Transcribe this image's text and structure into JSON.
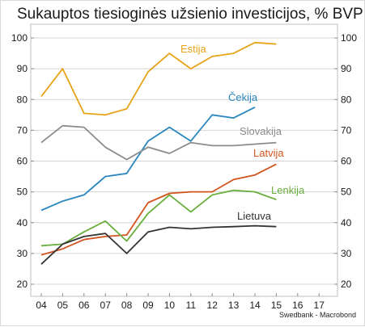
{
  "chart_data": {
    "type": "line",
    "title": "Sukauptos tiesioginės užsienio investicijos, % BVP",
    "source": "Swedbank - Macrobond",
    "x": [
      "04",
      "05",
      "06",
      "07",
      "08",
      "09",
      "10",
      "11",
      "12",
      "13",
      "14",
      "15",
      "16",
      "17"
    ],
    "ylim": [
      20,
      100
    ],
    "yticks": [
      20,
      30,
      40,
      50,
      60,
      70,
      80,
      90,
      100
    ],
    "grid": true,
    "y_axis_both_sides": true,
    "series": [
      {
        "name": "Estija",
        "color": "#E8A317",
        "values": [
          81,
          90,
          75.5,
          75,
          77,
          89,
          95,
          90,
          94,
          95,
          98.5,
          98,
          null,
          null
        ]
      },
      {
        "name": "Čekija",
        "color": "#2A86BF",
        "values": [
          44,
          47,
          49,
          55,
          56,
          66.5,
          71,
          66.5,
          75,
          74,
          77.5,
          null,
          null,
          null
        ]
      },
      {
        "name": "Slovakija",
        "color": "#8C8C8C",
        "values": [
          66,
          71.5,
          71,
          64.5,
          60.5,
          64.5,
          62.5,
          66,
          65,
          65,
          65.5,
          66,
          null,
          null
        ]
      },
      {
        "name": "Latvija",
        "color": "#D2551F",
        "values": [
          29.5,
          31.5,
          34.5,
          35.5,
          36,
          46.5,
          49.5,
          50,
          50,
          54,
          55.5,
          59,
          null,
          null
        ]
      },
      {
        "name": "Lenkija",
        "color": "#6AAE3E",
        "values": [
          32.5,
          33,
          37,
          40.5,
          34,
          43,
          49,
          43.5,
          49,
          50.5,
          50,
          47.5,
          null,
          null
        ]
      },
      {
        "name": "Lietuva",
        "color": "#333333",
        "values": [
          26.5,
          33,
          35.5,
          36.5,
          30,
          37,
          38.5,
          38,
          38.5,
          38.7,
          39,
          38.7,
          null,
          null
        ]
      }
    ]
  }
}
